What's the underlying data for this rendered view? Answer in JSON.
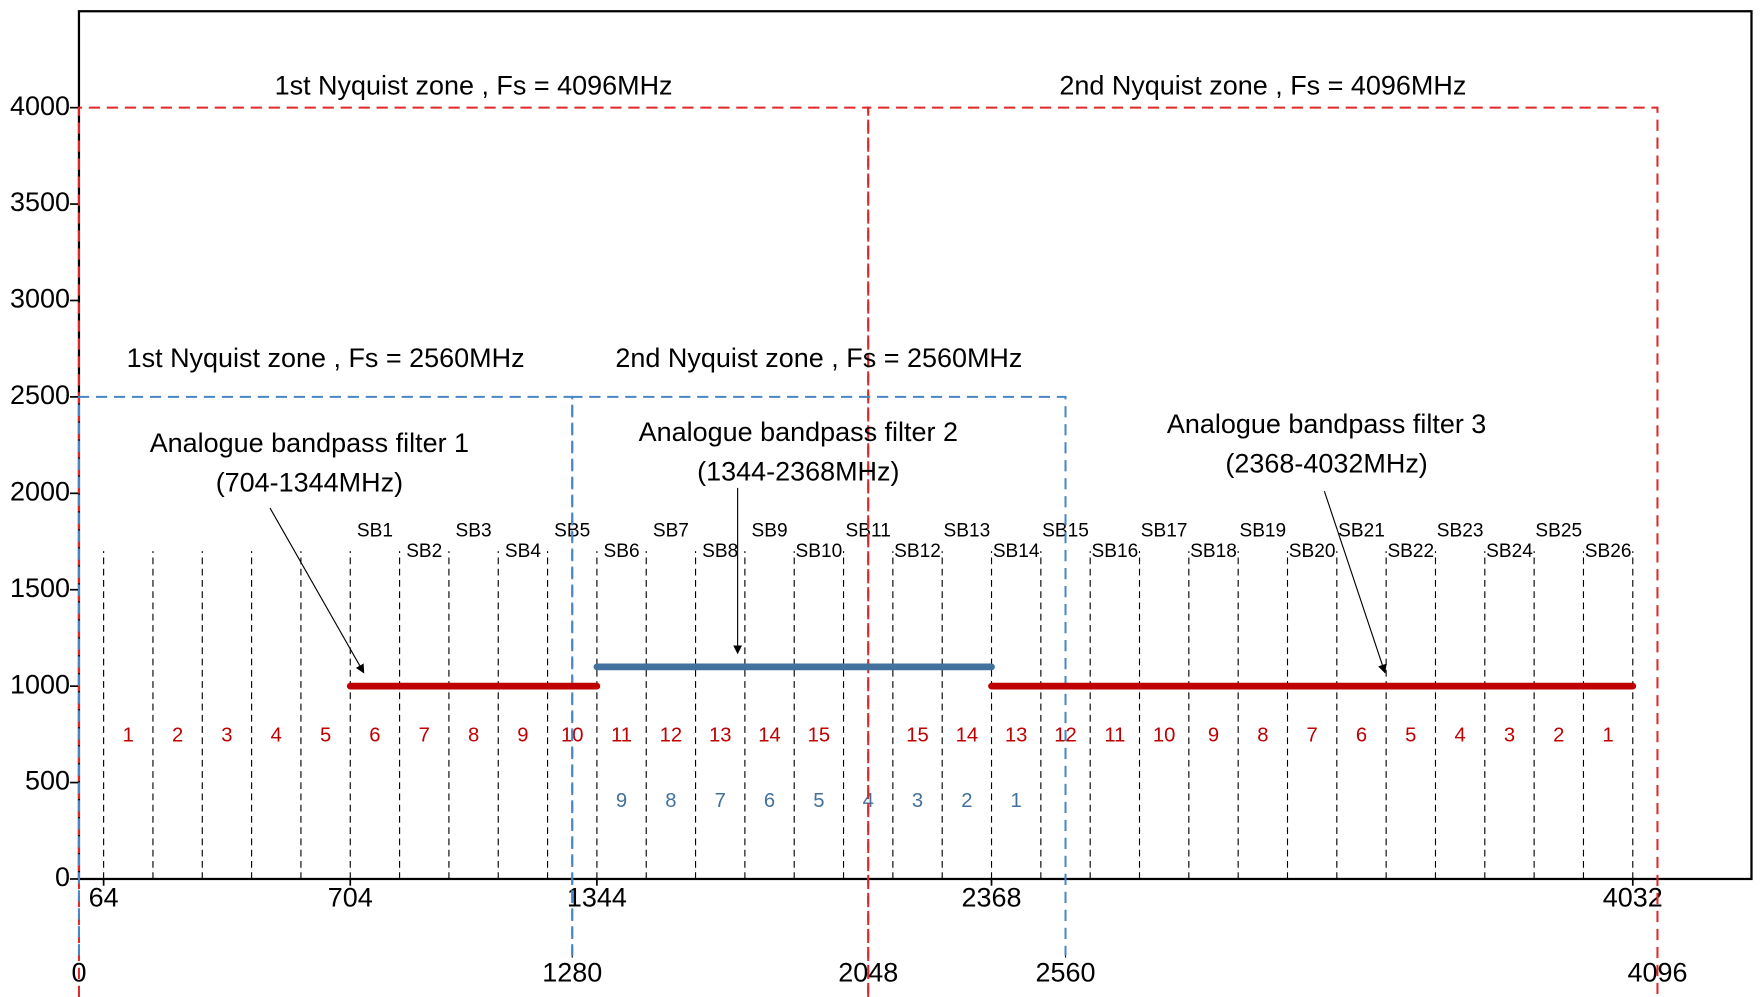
{
  "chart_data": {
    "type": "band-plan",
    "ylim": [
      0,
      4500
    ],
    "yticks": [
      0,
      500,
      1000,
      1500,
      2000,
      2500,
      3000,
      3500,
      4000
    ],
    "xlim": [
      0,
      4340
    ],
    "xticks": [
      64,
      704,
      1344,
      2368,
      4032
    ],
    "x2ticks": [
      0,
      1280,
      2048,
      2560,
      4096
    ],
    "zones": [
      {
        "name": "1st Nyquist zone , Fs = 4096MHz",
        "color": "#e02828",
        "start": 0,
        "end": 2048,
        "top": 4000
      },
      {
        "name": "2nd Nyquist zone , Fs = 4096MHz",
        "color": "#e02828",
        "start": 2048,
        "end": 4096,
        "top": 4000
      },
      {
        "name": "1st Nyquist zone , Fs = 2560MHz",
        "color": "#4a86c5",
        "start": 0,
        "end": 1280,
        "top": 2500
      },
      {
        "name": "2nd Nyquist zone , Fs = 2560MHz",
        "color": "#4a86c5",
        "start": 1280,
        "end": 2560,
        "top": 2500
      }
    ],
    "filters": [
      {
        "name": "Analogue bandpass filter 1",
        "range": "(704-1344MHz)",
        "color": "#c00000",
        "start": 704,
        "end": 1344,
        "level": 1000
      },
      {
        "name": "Analogue bandpass filter 2",
        "range": "(1344-2368MHz)",
        "color": "#41719c",
        "start": 1344,
        "end": 2368,
        "level": 1100
      },
      {
        "name": "Analogue bandpass filter 3",
        "range": "(2368-4032MHz)",
        "color": "#c00000",
        "start": 2368,
        "end": 4032,
        "level": 1000
      }
    ],
    "subbands": {
      "edges": [
        64,
        192,
        320,
        448,
        576,
        704,
        832,
        960,
        1088,
        1216,
        1344,
        1472,
        1600,
        1728,
        1856,
        1984,
        2112,
        2240,
        2368,
        2496,
        2624,
        2752,
        2880,
        3008,
        3136,
        3264,
        3392,
        3520,
        3648,
        3776,
        3904,
        4032
      ],
      "top": 1700,
      "labels": [
        "SB1",
        "SB2",
        "SB3",
        "SB4",
        "SB5",
        "SB6",
        "SB7",
        "SB8",
        "SB9",
        "SB10",
        "SB11",
        "SB12",
        "SB13",
        "SB14",
        "SB15",
        "SB16",
        "SB17",
        "SB18",
        "SB19",
        "SB20",
        "SB21",
        "SB22",
        "SB23",
        "SB24",
        "SB25",
        "SB26"
      ],
      "numbering": [
        {
          "color": "#c00000",
          "values": [
            1,
            2,
            3,
            4,
            5,
            6,
            7,
            8,
            9,
            10,
            11,
            12,
            13,
            14,
            15,
            null,
            15,
            14,
            13,
            12,
            11,
            10,
            9,
            8,
            7,
            6,
            5,
            4,
            3,
            2,
            1
          ]
        },
        {
          "color": "#41719c",
          "values": [
            null,
            null,
            null,
            null,
            null,
            null,
            null,
            null,
            null,
            null,
            9,
            8,
            7,
            6,
            5,
            4,
            3,
            2,
            1,
            null,
            null,
            null,
            null,
            null,
            null,
            null,
            null,
            null,
            null,
            null,
            null
          ]
        }
      ]
    }
  }
}
